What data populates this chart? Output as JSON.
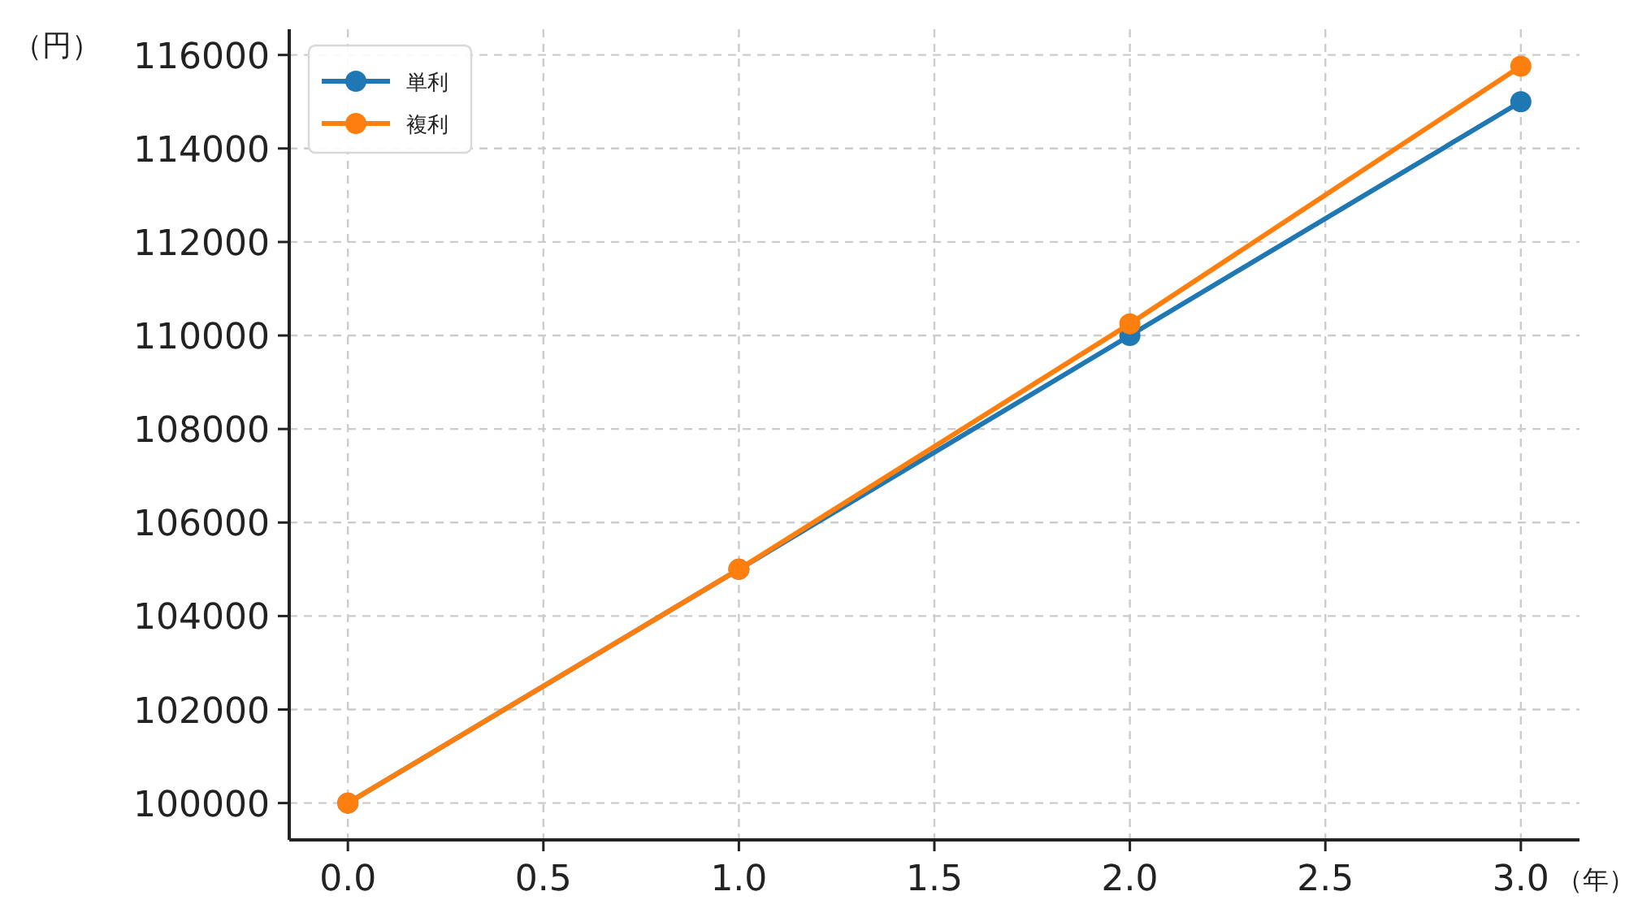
{
  "chart_data": {
    "type": "line",
    "xlabel": "（年）",
    "ylabel": "（円）",
    "x": [
      0,
      1,
      2,
      3
    ],
    "series": [
      {
        "name": "単利",
        "color": "#1f77b4",
        "values": [
          100000,
          105000,
          110000,
          115000
        ]
      },
      {
        "name": "複利",
        "color": "#ff7f0e",
        "values": [
          100000,
          105000,
          110250,
          115760
        ]
      }
    ],
    "xlim": [
      -0.15,
      3.15
    ],
    "xticks": [
      {
        "value": 0,
        "label": "0.0"
      },
      {
        "value": 0.5,
        "label": "0.5"
      },
      {
        "value": 1,
        "label": "1.0"
      },
      {
        "value": 1.5,
        "label": "1.5"
      },
      {
        "value": 2,
        "label": "2.0"
      },
      {
        "value": 2.5,
        "label": "2.5"
      },
      {
        "value": 3,
        "label": "3.0"
      }
    ],
    "ylim": [
      99212,
      116550
    ],
    "yticks": [
      100000,
      102000,
      104000,
      106000,
      108000,
      110000,
      112000,
      114000,
      116000
    ],
    "grid": true,
    "legend": "top left",
    "marker": "circle",
    "line_style": "solid"
  }
}
